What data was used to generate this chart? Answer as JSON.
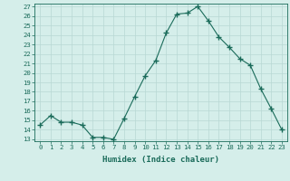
{
  "xlabel": "Humidex (Indice chaleur)",
  "ylabel": "",
  "x": [
    0,
    1,
    2,
    3,
    4,
    5,
    6,
    7,
    8,
    9,
    10,
    11,
    12,
    13,
    14,
    15,
    16,
    17,
    18,
    19,
    20,
    21,
    22,
    23
  ],
  "y": [
    14.5,
    15.5,
    14.8,
    14.8,
    14.5,
    13.2,
    13.2,
    13.0,
    15.2,
    17.5,
    19.7,
    21.3,
    24.2,
    26.2,
    26.3,
    27.0,
    25.5,
    23.8,
    22.7,
    21.5,
    20.8,
    18.3,
    16.2,
    14.0
  ],
  "ylim_min": 12.8,
  "ylim_max": 27.3,
  "xlim_min": -0.5,
  "xlim_max": 23.5,
  "yticks": [
    13,
    14,
    15,
    16,
    17,
    18,
    19,
    20,
    21,
    22,
    23,
    24,
    25,
    26,
    27
  ],
  "xticks": [
    0,
    1,
    2,
    3,
    4,
    5,
    6,
    7,
    8,
    9,
    10,
    11,
    12,
    13,
    14,
    15,
    16,
    17,
    18,
    19,
    20,
    21,
    22,
    23
  ],
  "line_color": "#1a6b5a",
  "marker_color": "#1a6b5a",
  "bg_color": "#d5eeea",
  "grid_color": "#b8d8d4",
  "axis_label_color": "#1a6b5a",
  "tick_label_color": "#1a6b5a",
  "xlabel_fontsize": 6.5,
  "tick_fontsize": 5.2
}
